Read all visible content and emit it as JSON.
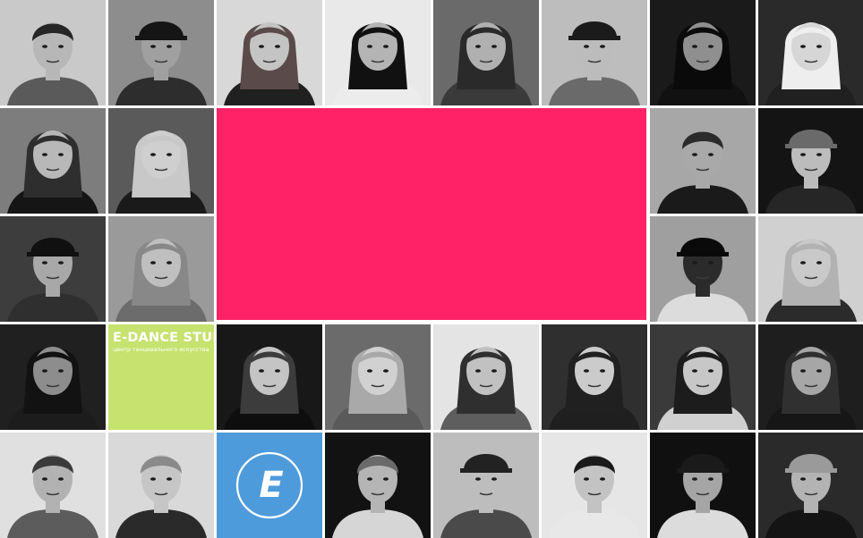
{
  "colors": {
    "hero": "#ff2266",
    "brand_bg": "#c6e26f",
    "logo_bg": "#4e9bdc",
    "logo_mark": "#ffffff"
  },
  "hero": {
    "icon": "blank-banner"
  },
  "brand": {
    "title": "E-DANCE STUDIO",
    "subtitle": "центр танцевального искусства"
  },
  "logo": {
    "letter": "E",
    "icon": "e-dance-logo-icon"
  },
  "grid": {
    "columns": 8,
    "rows": 5,
    "photos": [
      {
        "id": "dancer-1",
        "bg": "#c9c9c9",
        "skin": "#b7b7b7",
        "hair": "#262626",
        "cloth": "#5a5a5a",
        "style": "short"
      },
      {
        "id": "dancer-2",
        "bg": "#8d8d8d",
        "skin": "#a0a0a0",
        "hair": "#151515",
        "cloth": "#2d2d2d",
        "style": "cap"
      },
      {
        "id": "dancer-3",
        "bg": "#d8d8d8",
        "skin": "#c4c4c4",
        "hair": "#5a4a4a",
        "cloth": "#202020",
        "style": "long"
      },
      {
        "id": "dancer-4",
        "bg": "#e9e9e9",
        "skin": "#b4b4b4",
        "hair": "#111111",
        "cloth": "#ececec",
        "style": "long"
      },
      {
        "id": "dancer-5",
        "bg": "#6a6a6a",
        "skin": "#b0b0b0",
        "hair": "#2a2a2a",
        "cloth": "#3a3a3a",
        "style": "long"
      },
      {
        "id": "dancer-6",
        "bg": "#bdbdbd",
        "skin": "#bcbcbc",
        "hair": "#1b1b1b",
        "cloth": "#6a6a6a",
        "style": "cap"
      },
      {
        "id": "dancer-7",
        "bg": "#1a1a1a",
        "skin": "#8f8f8f",
        "hair": "#0a0a0a",
        "cloth": "#111111",
        "style": "long"
      },
      {
        "id": "dancer-8",
        "bg": "#2a2a2a",
        "skin": "#d6d6d6",
        "hair": "#eeeeee",
        "cloth": "#202020",
        "style": "long"
      },
      {
        "id": "dancer-9",
        "bg": "#7d7d7d",
        "skin": "#b8b8b8",
        "hair": "#2e2e2e",
        "cloth": "#151515",
        "style": "long"
      },
      {
        "id": "dancer-10",
        "bg": "#5a5a5a",
        "skin": "#cfcfcf",
        "hair": "#c8c8c8",
        "cloth": "#1a1a1a",
        "style": "long"
      },
      {
        "id": "dancer-11",
        "bg": "#a7a7a7",
        "skin": "#a9a9a9",
        "hair": "#2b2b2b",
        "cloth": "#1a1a1a",
        "style": "short"
      },
      {
        "id": "dancer-12",
        "bg": "#141414",
        "skin": "#bcbcbc",
        "hair": "#6a6a6a",
        "cloth": "#262626",
        "style": "cap"
      },
      {
        "id": "dancer-13",
        "bg": "#3d3d3d",
        "skin": "#a8a8a8",
        "hair": "#101010",
        "cloth": "#2f2f2f",
        "style": "cap"
      },
      {
        "id": "dancer-14",
        "bg": "#9a9a9a",
        "skin": "#bfbfbf",
        "hair": "#888888",
        "cloth": "#6c6c6c",
        "style": "long"
      },
      {
        "id": "dancer-15",
        "bg": "#9f9f9f",
        "skin": "#2b2b2b",
        "hair": "#0a0a0a",
        "cloth": "#dcdcdc",
        "style": "cap"
      },
      {
        "id": "dancer-16",
        "bg": "#d0d0d0",
        "skin": "#c9c9c9",
        "hair": "#b2b2b2",
        "cloth": "#2b2b2b",
        "style": "long"
      },
      {
        "id": "dancer-17",
        "bg": "#202020",
        "skin": "#8d8d8d",
        "hair": "#121212",
        "cloth": "#1c1c1c",
        "style": "long"
      },
      {
        "id": "dancer-18",
        "bg": "#181818",
        "skin": "#c4c4c4",
        "hair": "#3c3c3c",
        "cloth": "#0e0e0e",
        "style": "long"
      },
      {
        "id": "dancer-19",
        "bg": "#6b6b6b",
        "skin": "#d1d1d1",
        "hair": "#a9a9a9",
        "cloth": "#5a5a5a",
        "style": "long"
      },
      {
        "id": "dancer-20",
        "bg": "#e4e4e4",
        "skin": "#c1c1c1",
        "hair": "#2f2f2f",
        "cloth": "#5e5e5e",
        "style": "long"
      },
      {
        "id": "dancer-21",
        "bg": "#2f2f2f",
        "skin": "#cbcbcb",
        "hair": "#202020",
        "cloth": "#1f1f1f",
        "style": "long"
      },
      {
        "id": "dancer-22",
        "bg": "#3a3a3a",
        "skin": "#c7c7c7",
        "hair": "#1c1c1c",
        "cloth": "#d0d0d0",
        "style": "long"
      },
      {
        "id": "dancer-23",
        "bg": "#1e1e1e",
        "skin": "#a6a6a6",
        "hair": "#303030",
        "cloth": "#161616",
        "style": "long"
      },
      {
        "id": "dancer-24",
        "bg": "#e0e0e0",
        "skin": "#b2b2b2",
        "hair": "#3a3a3a",
        "cloth": "#5c5c5c",
        "style": "short"
      },
      {
        "id": "dancer-25",
        "bg": "#d9d9d9",
        "skin": "#c6c6c6",
        "hair": "#8a8a8a",
        "cloth": "#2a2a2a",
        "style": "short"
      },
      {
        "id": "dancer-26",
        "bg": "#121212",
        "skin": "#b5b5b5",
        "hair": "#6a6a6a",
        "cloth": "#d6d6d6",
        "style": "short"
      },
      {
        "id": "dancer-27",
        "bg": "#bdbdbd",
        "skin": "#bdbdbd",
        "hair": "#222222",
        "cloth": "#4a4a4a",
        "style": "cap"
      },
      {
        "id": "dancer-28",
        "bg": "#e6e6e6",
        "skin": "#c3c3c3",
        "hair": "#1a1a1a",
        "cloth": "#e8e8e8",
        "style": "short"
      },
      {
        "id": "dancer-29",
        "bg": "#101010",
        "skin": "#a5a5a5",
        "hair": "#1a1a1a",
        "cloth": "#dcdcdc",
        "style": "cap"
      },
      {
        "id": "dancer-30",
        "bg": "#2a2a2a",
        "skin": "#b3b3b3",
        "hair": "#9a9a9a",
        "cloth": "#141414",
        "style": "cap"
      }
    ]
  }
}
